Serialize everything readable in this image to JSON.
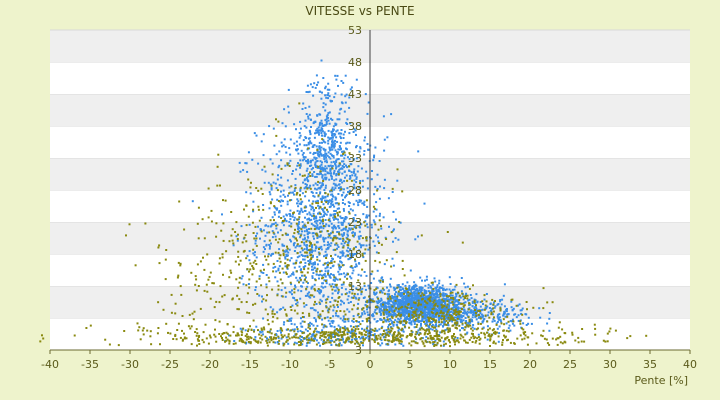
{
  "chart_data": {
    "type": "scatter",
    "title": "VITESSE vs PENTE",
    "xlabel": "Pente [%]",
    "ylabel": "",
    "xlim": [
      -40,
      40
    ],
    "ylim": [
      3,
      53
    ],
    "x_ticks": [
      -40,
      -35,
      -30,
      -25,
      -20,
      -15,
      -10,
      -5,
      0,
      5,
      10,
      15,
      20,
      25,
      30,
      35,
      40
    ],
    "y_ticks": [
      3,
      8,
      13,
      18,
      23,
      28,
      33,
      38,
      43,
      48,
      53
    ],
    "y_tick_labels": [
      "3",
      "",
      "13",
      "18",
      "23",
      "28",
      "33",
      "38",
      "43",
      "48",
      "53"
    ],
    "grid": "horizontal alternating bands",
    "legend": "none",
    "series": [
      {
        "color": "#3a8ee6",
        "clusters": [
          {
            "cx": -6,
            "cy": 22,
            "sx": 4,
            "sy": 9,
            "n": 1400
          },
          {
            "cx": -5.5,
            "cy": 35,
            "sx": 1.5,
            "sy": 6,
            "n": 350
          },
          {
            "cx": 6,
            "cy": 10,
            "sx": 3,
            "sy": 1.5,
            "n": 1400
          },
          {
            "cx": 12,
            "cy": 8.5,
            "sx": 4,
            "sy": 1.2,
            "n": 350
          },
          {
            "cx": -3,
            "cy": 5,
            "sx": 6,
            "sy": 1.2,
            "n": 250
          }
        ]
      },
      {
        "color": "#8a8a10",
        "clusters": [
          {
            "cx": -8,
            "cy": 17,
            "sx": 6,
            "sy": 8,
            "n": 500
          },
          {
            "cx": 0,
            "cy": 5,
            "sx": 14,
            "sy": 0.9,
            "n": 650
          },
          {
            "cx": 8,
            "cy": 9,
            "sx": 5,
            "sy": 2,
            "n": 350
          },
          {
            "cx": -20,
            "cy": 14,
            "sx": 5,
            "sy": 6,
            "n": 120
          }
        ]
      }
    ]
  }
}
